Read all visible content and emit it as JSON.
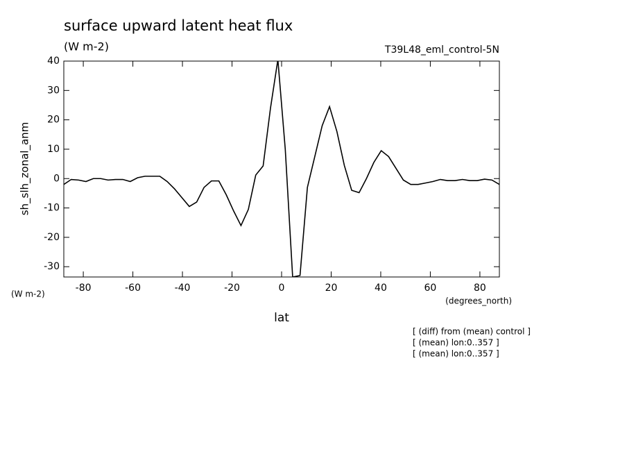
{
  "chart_data": {
    "type": "line",
    "title": "surface upward latent heat flux",
    "subtitle": "(W m-2)",
    "dataset_label": "T39L48_eml_control-5N",
    "y_label": "sh_slh_zonal_anm",
    "y_units": "(W m-2)",
    "x_units": "(degrees_north)",
    "x_label": "lat",
    "notes": [
      "[ (diff) from (mean) control ]",
      "[ (mean) lon:0..357 ]",
      "[ (mean) lon:0..357 ]"
    ],
    "x": [
      -87.86,
      -84.88,
      -81.9,
      -78.93,
      -75.95,
      -72.97,
      -69.99,
      -67.01,
      -64.04,
      -61.06,
      -58.08,
      -55.1,
      -52.12,
      -49.15,
      -46.17,
      -43.19,
      -40.21,
      -37.23,
      -34.26,
      -31.28,
      -28.3,
      -25.32,
      -22.34,
      -19.37,
      -16.39,
      -13.41,
      -10.43,
      -7.45,
      -4.48,
      -1.5,
      1.48,
      4.46,
      7.43,
      10.41,
      13.39,
      16.37,
      19.34,
      22.32,
      25.3,
      28.28,
      31.26,
      34.23,
      37.21,
      40.19,
      43.17,
      46.14,
      49.12,
      52.1,
      55.08,
      58.06,
      61.03,
      64.01,
      66.99,
      69.97,
      72.95,
      75.92,
      78.9,
      81.88,
      84.86,
      87.86
    ],
    "series": [
      {
        "name": "sh_slh_zonal_anm",
        "color": "#000000",
        "values": [
          -2,
          -0.3,
          -0.5,
          -1,
          0,
          0,
          -0.5,
          -0.3,
          -0.3,
          -1,
          0.3,
          0.8,
          0.8,
          0.8,
          -1,
          -3.5,
          -6.5,
          -9.5,
          -8,
          -3,
          -0.8,
          -0.8,
          -5.5,
          -11,
          -16,
          -10.5,
          1.2,
          4.3,
          24,
          40.5,
          10,
          -33.5,
          -33,
          -3,
          7.5,
          18,
          24.5,
          16,
          4.5,
          -4,
          -4.8,
          0,
          5.5,
          9.5,
          7.5,
          3.5,
          -0.5,
          -2,
          -2,
          -1.5,
          -1,
          -0.3,
          -0.7,
          -0.7,
          -0.3,
          -0.7,
          -0.7,
          -0.2,
          -0.5,
          -2
        ]
      }
    ],
    "xlim": [
      -87.86,
      87.86
    ],
    "ylim": [
      -33.5,
      40
    ],
    "xticks": [
      -80,
      -60,
      -40,
      -20,
      0,
      20,
      40,
      60,
      80
    ],
    "yticks": [
      -30,
      -20,
      -10,
      0,
      10,
      20,
      30,
      40
    ],
    "grid": false
  }
}
